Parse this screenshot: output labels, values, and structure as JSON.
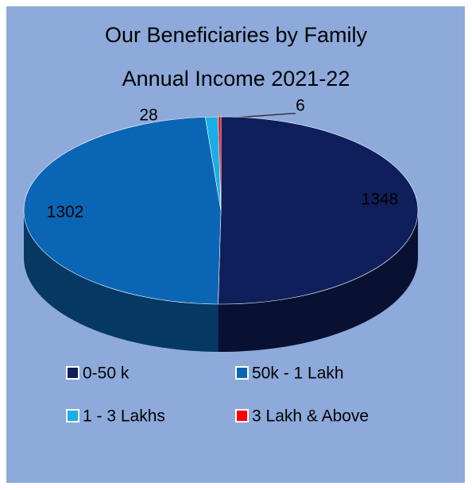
{
  "chart_data": {
    "type": "pie3d",
    "title_lines": [
      "Our Beneficiaries by Family",
      "Annual Income 2021-22"
    ],
    "categories": [
      "0-50 k",
      "50k - 1 Lakh",
      "1 - 3 Lakhs",
      "3 Lakh & Above"
    ],
    "values": [
      1348,
      1302,
      28,
      6
    ],
    "colors": [
      "#0e1f5b",
      "#0b65b5",
      "#1aaee6",
      "#ff0000"
    ],
    "legend": "bottom"
  }
}
